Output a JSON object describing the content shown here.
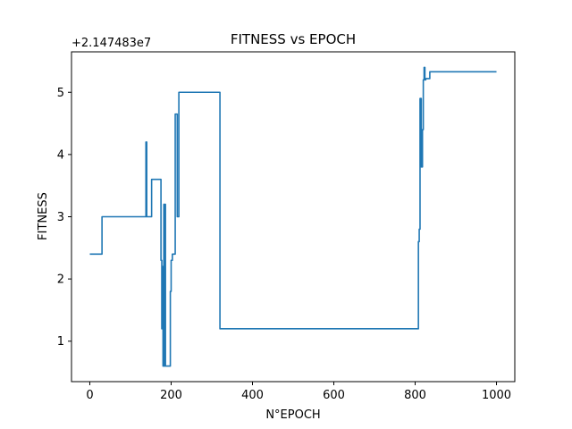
{
  "chart_data": {
    "type": "line",
    "title": "FITNESS vs EPOCH",
    "xlabel": "N°EPOCH",
    "ylabel": "FITNESS",
    "y_offset_label": "+2.147483e7",
    "xlim": [
      -45,
      1045
    ],
    "ylim": [
      0.35,
      5.65
    ],
    "x_ticks": [
      0,
      200,
      400,
      600,
      800,
      1000
    ],
    "y_ticks": [
      1,
      2,
      3,
      4,
      5
    ],
    "grid": false,
    "line_color": "#1f77b4",
    "series": [
      {
        "x": [
          0,
          30,
          30,
          138,
          138,
          140,
          140,
          148,
          148,
          152,
          152,
          175,
          175,
          177,
          177,
          179,
          179,
          180,
          180,
          182,
          182,
          183,
          183,
          185,
          185,
          186,
          186,
          189,
          189,
          198,
          198,
          200,
          200,
          203,
          203,
          206,
          206,
          210,
          210,
          215,
          215,
          217,
          217,
          219,
          219,
          320,
          320,
          808,
          808,
          809,
          809,
          810,
          810,
          812,
          812,
          815,
          815,
          818,
          818,
          820,
          820,
          822,
          822,
          824,
          824,
          826,
          826,
          829,
          829,
          832,
          832,
          834,
          834,
          836,
          836,
          950,
          950,
          1000
        ],
        "y": [
          2.4,
          2.4,
          3.0,
          3.0,
          4.2,
          4.2,
          3.0,
          3.0,
          3.0,
          3.0,
          3.6,
          3.6,
          2.3,
          2.3,
          1.2,
          1.2,
          2.2,
          2.2,
          0.6,
          0.6,
          3.2,
          3.2,
          0.6,
          0.6,
          3.2,
          3.2,
          0.6,
          0.6,
          0.6,
          0.6,
          1.8,
          1.8,
          2.3,
          2.3,
          2.4,
          2.4,
          2.4,
          2.4,
          4.65,
          4.65,
          3.0,
          3.0,
          3.0,
          3.0,
          5.0,
          5.0,
          1.2,
          1.2,
          2.6,
          2.6,
          2.6,
          2.6,
          2.8,
          2.8,
          4.9,
          4.9,
          3.8,
          3.8,
          4.4,
          4.4,
          5.2,
          5.2,
          5.4,
          5.4,
          5.2,
          5.2,
          5.22,
          5.22,
          5.22,
          5.22,
          5.22,
          5.22,
          5.22,
          5.22,
          5.33,
          5.33,
          5.33,
          5.33
        ]
      }
    ]
  }
}
